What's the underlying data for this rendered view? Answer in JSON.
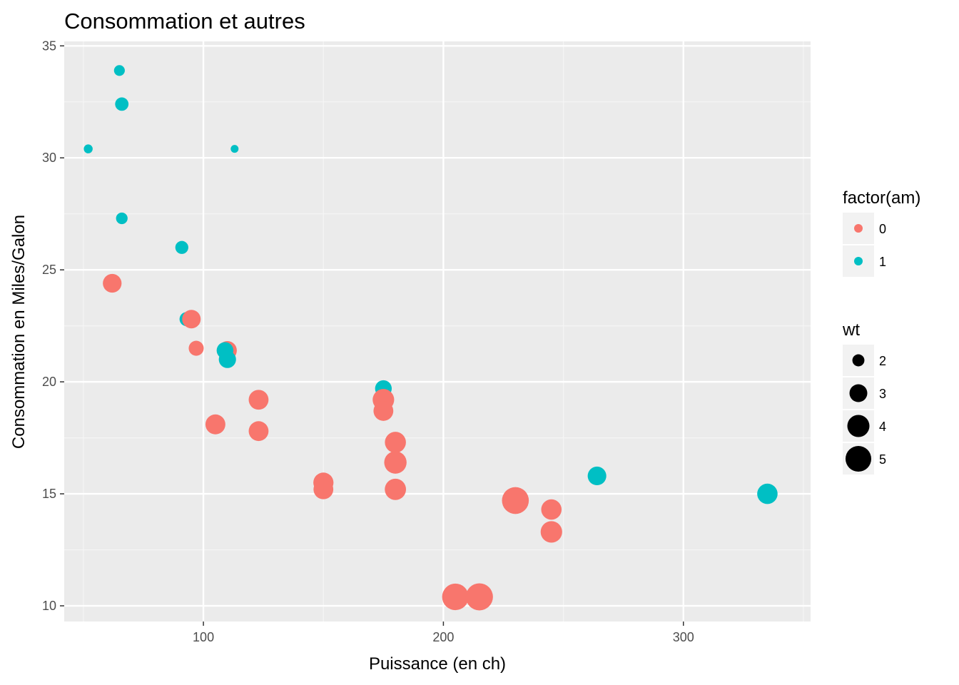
{
  "chart_data": {
    "type": "scatter",
    "title": "Consommation et autres",
    "xlabel": "Puissance (en ch)",
    "ylabel": "Consommation en Miles/Galon",
    "xlim": [
      42,
      353
    ],
    "ylim": [
      9.3,
      35.2
    ],
    "xticks": [
      100,
      200,
      300
    ],
    "yticks": [
      10,
      15,
      20,
      25,
      30,
      35
    ],
    "grid": true,
    "colors": {
      "0": "#F8766D",
      "1": "#00BFC4"
    },
    "color_legend": {
      "title": "factor(am)",
      "labels": [
        "0",
        "1"
      ]
    },
    "size_legend": {
      "title": "wt",
      "labels": [
        "2",
        "3",
        "4",
        "5"
      ],
      "values": [
        2,
        3,
        4,
        5
      ]
    },
    "points": [
      {
        "x": 66,
        "y": 32.4,
        "am": "1",
        "wt": 2.2
      },
      {
        "x": 65,
        "y": 33.9,
        "am": "1",
        "wt": 1.835
      },
      {
        "x": 52,
        "y": 30.4,
        "am": "1",
        "wt": 1.615
      },
      {
        "x": 113,
        "y": 30.4,
        "am": "1",
        "wt": 1.513
      },
      {
        "x": 66,
        "y": 27.3,
        "am": "1",
        "wt": 1.935
      },
      {
        "x": 91,
        "y": 26.0,
        "am": "1",
        "wt": 2.14
      },
      {
        "x": 62,
        "y": 24.4,
        "am": "0",
        "wt": 3.19
      },
      {
        "x": 93,
        "y": 22.8,
        "am": "1",
        "wt": 2.32
      },
      {
        "x": 95,
        "y": 22.8,
        "am": "0",
        "wt": 3.15
      },
      {
        "x": 97,
        "y": 21.5,
        "am": "0",
        "wt": 2.465
      },
      {
        "x": 110,
        "y": 21.4,
        "am": "0",
        "wt": 3.215
      },
      {
        "x": 109,
        "y": 21.4,
        "am": "1",
        "wt": 2.78
      },
      {
        "x": 110,
        "y": 21.0,
        "am": "1",
        "wt": 2.875
      },
      {
        "x": 175,
        "y": 19.7,
        "am": "1",
        "wt": 2.77
      },
      {
        "x": 175,
        "y": 19.2,
        "am": "0",
        "wt": 3.845
      },
      {
        "x": 123,
        "y": 19.2,
        "am": "0",
        "wt": 3.44
      },
      {
        "x": 105,
        "y": 18.1,
        "am": "0",
        "wt": 3.46
      },
      {
        "x": 175,
        "y": 18.7,
        "am": "0",
        "wt": 3.44
      },
      {
        "x": 123,
        "y": 17.8,
        "am": "0",
        "wt": 3.44
      },
      {
        "x": 180,
        "y": 17.3,
        "am": "0",
        "wt": 3.73
      },
      {
        "x": 180,
        "y": 16.4,
        "am": "0",
        "wt": 4.07
      },
      {
        "x": 264,
        "y": 15.8,
        "am": "1",
        "wt": 3.17
      },
      {
        "x": 150,
        "y": 15.5,
        "am": "0",
        "wt": 3.52
      },
      {
        "x": 150,
        "y": 15.2,
        "am": "0",
        "wt": 3.435
      },
      {
        "x": 180,
        "y": 15.2,
        "am": "0",
        "wt": 3.78
      },
      {
        "x": 335,
        "y": 15.0,
        "am": "1",
        "wt": 3.57
      },
      {
        "x": 230,
        "y": 14.7,
        "am": "0",
        "wt": 5.345
      },
      {
        "x": 245,
        "y": 14.3,
        "am": "0",
        "wt": 3.57
      },
      {
        "x": 245,
        "y": 13.3,
        "am": "0",
        "wt": 3.84
      },
      {
        "x": 205,
        "y": 10.4,
        "am": "0",
        "wt": 5.25
      },
      {
        "x": 215,
        "y": 10.4,
        "am": "0",
        "wt": 5.424
      }
    ]
  }
}
